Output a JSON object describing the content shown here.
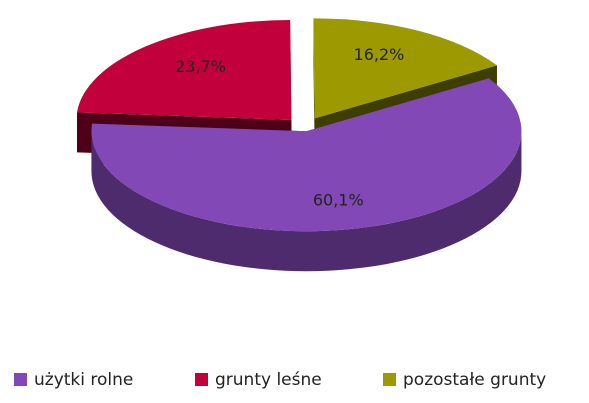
{
  "chart_data": {
    "type": "pie",
    "categories": [
      "użytki rolne",
      "grunty leśne",
      "pozostałe grunty"
    ],
    "values": [
      60.1,
      23.7,
      16.2
    ],
    "value_labels": [
      "60,1%",
      "23,7%",
      "16,2%"
    ],
    "colors": [
      "#8148b6",
      "#c2003c",
      "#9c9a00"
    ],
    "legend": "bottom"
  }
}
